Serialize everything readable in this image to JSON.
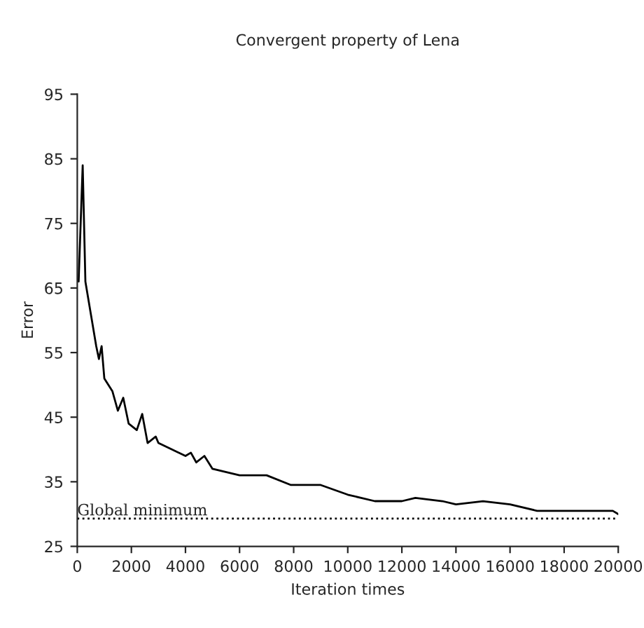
{
  "chart_data": {
    "type": "line",
    "title": "Convergent property of Lena",
    "xlabel": "Iteration times",
    "ylabel": "Error",
    "xlim": [
      0,
      20000
    ],
    "xticks": [
      0,
      2000,
      4000,
      6000,
      8000,
      10000,
      12000,
      14000,
      16000,
      18000,
      20000
    ],
    "ylim": [
      25,
      95
    ],
    "yticks": [
      25,
      35,
      45,
      55,
      65,
      75,
      85,
      95
    ],
    "grid": false,
    "legend": false,
    "series": [
      {
        "color": "#000000",
        "x": [
          50,
          200,
          300,
          500,
          700,
          800,
          900,
          1000,
          1300,
          1500,
          1700,
          1900,
          2200,
          2400,
          2600,
          2900,
          3000,
          3500,
          4000,
          4200,
          4400,
          4700,
          5000,
          6000,
          7000,
          7900,
          9000,
          10000,
          11000,
          12000,
          12500,
          13500,
          14000,
          15000,
          16000,
          17000,
          19800,
          20000
        ],
        "values": [
          66,
          84,
          66,
          61,
          56,
          54,
          56,
          51,
          49,
          46,
          48,
          44,
          43,
          45.5,
          41,
          42,
          41,
          40,
          39,
          39.5,
          38,
          39,
          37,
          36,
          36,
          34.5,
          34.5,
          33,
          32,
          32,
          32.5,
          32,
          31.5,
          32,
          31.5,
          30.5,
          30.5,
          30
        ]
      }
    ],
    "ref_lines": [
      {
        "axis": "y",
        "value": 29.3,
        "label": "Global minimum",
        "line_style": "dotted",
        "color": "#000000"
      }
    ]
  }
}
